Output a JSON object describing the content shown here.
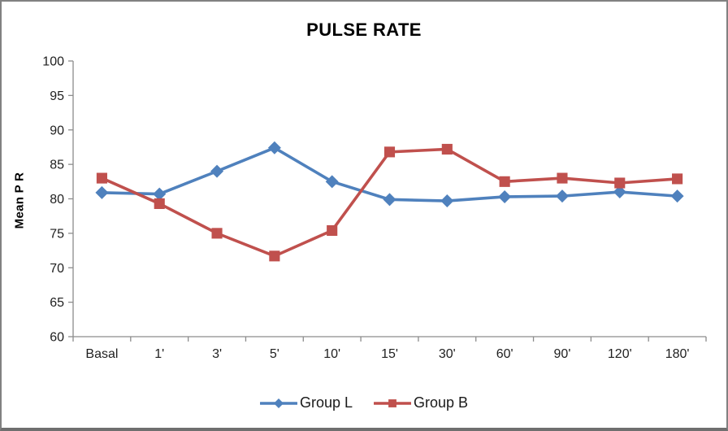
{
  "chart_data": {
    "type": "line",
    "title": "PULSE RATE",
    "ylabel": "Mean P R",
    "xlabel": "",
    "categories": [
      "Basal",
      "1'",
      "3'",
      "5'",
      "10'",
      "15'",
      "30'",
      "60'",
      "90'",
      "120'",
      "180'"
    ],
    "series": [
      {
        "name": "Group L",
        "color": "#4F81BD",
        "marker": "diamond",
        "values": [
          80.9,
          80.7,
          84.0,
          87.4,
          82.5,
          79.9,
          79.7,
          80.3,
          80.4,
          81.0,
          80.4
        ]
      },
      {
        "name": "Group B",
        "color": "#C0504D",
        "marker": "square",
        "values": [
          83.0,
          79.3,
          75.0,
          71.7,
          75.4,
          86.8,
          87.2,
          82.5,
          83.0,
          82.3,
          82.9
        ]
      }
    ],
    "ylim": [
      60,
      100
    ],
    "ytick_step": 5,
    "grid": false,
    "legend_position": "bottom",
    "axis_color": "#8C8C8C",
    "text_color": "#1F1F1F"
  }
}
